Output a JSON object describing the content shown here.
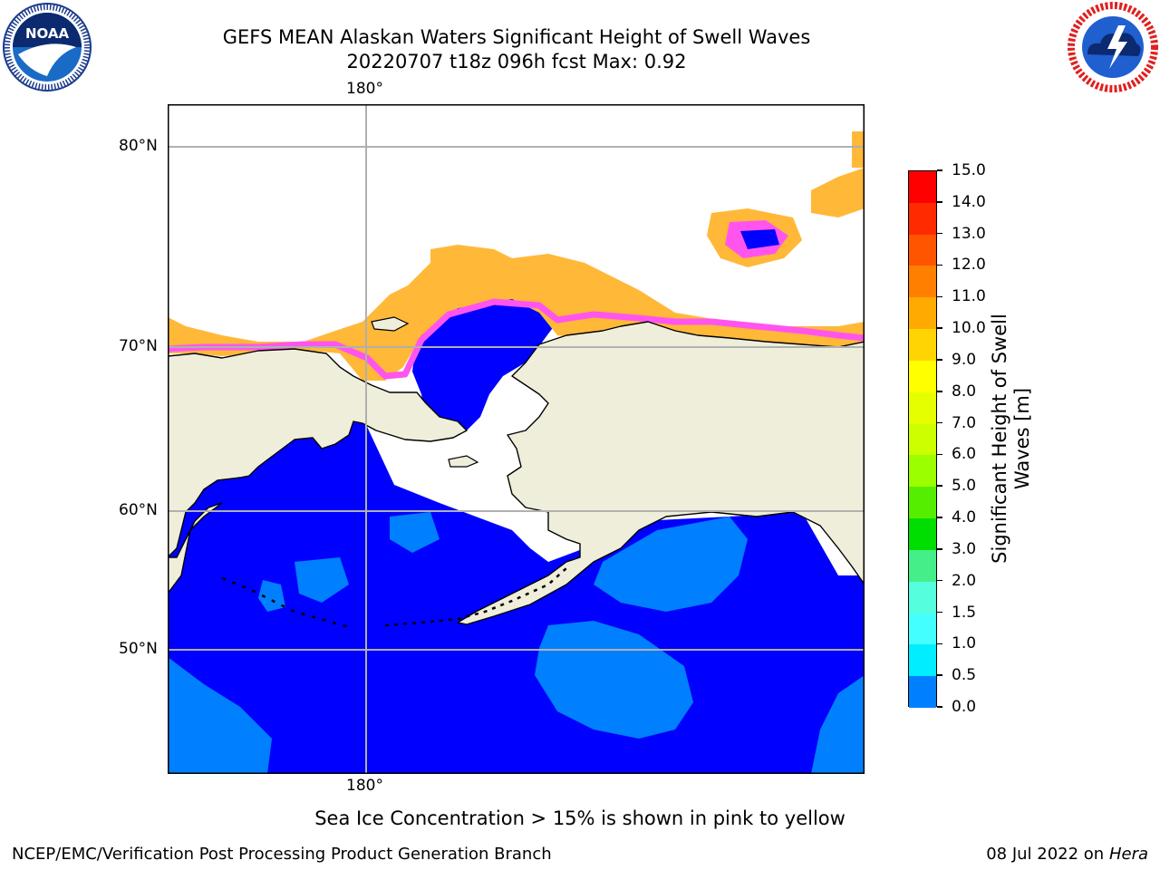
{
  "header": {
    "title_line1": "GEFS MEAN Alaskan Waters Significant Height of Swell Waves",
    "title_line2": "20220707 t18z 096h fcst   Max: 0.92"
  },
  "logos": {
    "noaa_text": "NOAA",
    "noaa_ring_text": "NATIONAL OCEANIC AND ATMOSPHERIC ADMINISTRATION · U.S. DEPARTMENT OF COMMERCE",
    "nws_ring_text": "NATIONAL WEATHER SERVICE"
  },
  "map": {
    "lon_label_top": "180°",
    "lon_label_bottom": "180°",
    "lat_labels": [
      "80°N",
      "70°N",
      "60°N",
      "50°N"
    ],
    "colors": {
      "land": "#efeedb",
      "water_low": "#0000ff",
      "water_mid": "#0080ff",
      "ice_pink": "#ff55ee",
      "ice_orange": "#ffb838",
      "grid": "#b0b0b0"
    }
  },
  "colorbar": {
    "label": "Significant Height of Swell Waves [m]",
    "ticks": [
      "15.0",
      "14.0",
      "13.0",
      "12.0",
      "11.0",
      "10.0",
      "9.0",
      "8.0",
      "7.0",
      "6.0",
      "5.0",
      "4.0",
      "3.0",
      "2.0",
      "1.5",
      "1.0",
      "0.5",
      "0.0"
    ],
    "colors": [
      "#ff0000",
      "#ff2a00",
      "#ff5500",
      "#ff8000",
      "#ffaa00",
      "#ffd400",
      "#ffff00",
      "#e6ff00",
      "#ccff00",
      "#9bff00",
      "#55ee00",
      "#00dd00",
      "#44ee88",
      "#55ffdd",
      "#44ffff",
      "#00eeff",
      "#0080ff",
      "#0000ff"
    ]
  },
  "note": "Sea Ice Concentration > 15% is shown in pink to yellow",
  "footer": {
    "left": "NCEP/EMC/Verification Post Processing Product Generation Branch",
    "right_date": "08 Jul 2022 on",
    "right_host": "Hera"
  }
}
